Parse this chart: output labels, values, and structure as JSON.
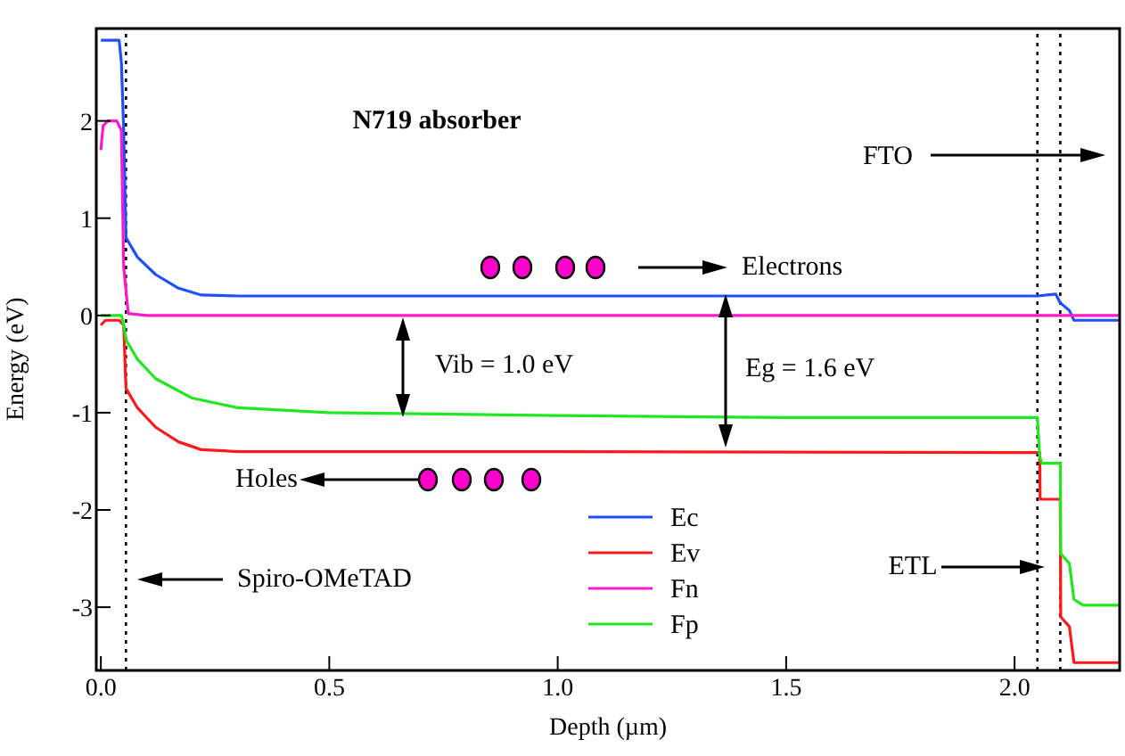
{
  "chart_data": {
    "type": "line",
    "xlabel": "Depth (µm)",
    "ylabel": "Energy (eV)",
    "xlim": [
      -0.01,
      2.23
    ],
    "xticks": [
      {
        "value": 0,
        "label": "0.0"
      },
      0.5,
      {
        "value": 1,
        "label": "1.0"
      },
      1.5,
      {
        "value": 2,
        "label": "2.0"
      }
    ],
    "ylim": [
      -3.65,
      2.95
    ],
    "yticks": [
      -3,
      -2,
      -1,
      0,
      1,
      2
    ],
    "legend": "bottom",
    "grid": false,
    "marker": "none",
    "line_style": "solid",
    "series": [
      {
        "name": "Ec",
        "color": "#1f4fff",
        "x": [
          0,
          0.04,
          0.045,
          0.05,
          0.055,
          0.08,
          0.12,
          0.17,
          0.22,
          0.3,
          1.0,
          2.05,
          2.09,
          2.1,
          2.12,
          2.13,
          2.23
        ],
        "values": [
          2.83,
          2.83,
          2.6,
          1.9,
          0.8,
          0.6,
          0.42,
          0.28,
          0.21,
          0.2,
          0.2,
          0.2,
          0.22,
          0.13,
          0.05,
          -0.05,
          -0.05
        ]
      },
      {
        "name": "Ev",
        "color": "#ff1a1a",
        "x": [
          0,
          0.01,
          0.04,
          0.05,
          0.055,
          0.08,
          0.12,
          0.17,
          0.22,
          0.3,
          1.0,
          2.055,
          2.056,
          2.1,
          2.101,
          2.12,
          2.13,
          2.23
        ],
        "values": [
          -0.1,
          -0.05,
          -0.05,
          -0.1,
          -0.75,
          -0.95,
          -1.15,
          -1.3,
          -1.38,
          -1.4,
          -1.4,
          -1.41,
          -1.89,
          -1.89,
          -3.1,
          -3.2,
          -3.57,
          -3.57
        ]
      },
      {
        "name": "Fn",
        "color": "#ff19c8",
        "x": [
          0,
          0.005,
          0.015,
          0.035,
          0.045,
          0.05,
          0.06,
          0.1,
          1.0,
          2.23
        ],
        "values": [
          1.7,
          1.95,
          2.0,
          2.0,
          1.9,
          0.5,
          0.02,
          0,
          0,
          0
        ]
      },
      {
        "name": "Fp",
        "color": "#22e622",
        "x": [
          0,
          0.045,
          0.05,
          0.055,
          0.08,
          0.12,
          0.2,
          0.3,
          0.5,
          1.0,
          1.5,
          2.05,
          2.055,
          2.06,
          2.1,
          2.101,
          2.12,
          2.13,
          2.15,
          2.23
        ],
        "values": [
          0,
          0,
          -0.1,
          -0.25,
          -0.45,
          -0.65,
          -0.85,
          -0.95,
          -1.0,
          -1.03,
          -1.05,
          -1.05,
          -1.45,
          -1.52,
          -1.52,
          -2.45,
          -2.55,
          -2.92,
          -2.98,
          -2.98
        ]
      }
    ],
    "ref_lines": [
      {
        "axis": "x",
        "value": 0.055,
        "color": "#000000",
        "line_style": "dotted"
      },
      {
        "axis": "x",
        "value": 2.05,
        "color": "#000000",
        "line_style": "dotted"
      },
      {
        "axis": "x",
        "value": 2.1,
        "color": "#000000",
        "line_style": "dotted"
      }
    ],
    "annotations": [
      "N719 absorber",
      "FTO",
      "Electrons",
      "Vib = 1.0 eV",
      "Eg = 1.6 eV",
      "Holes",
      "ETL",
      "Spiro-OMeTAD"
    ]
  }
}
